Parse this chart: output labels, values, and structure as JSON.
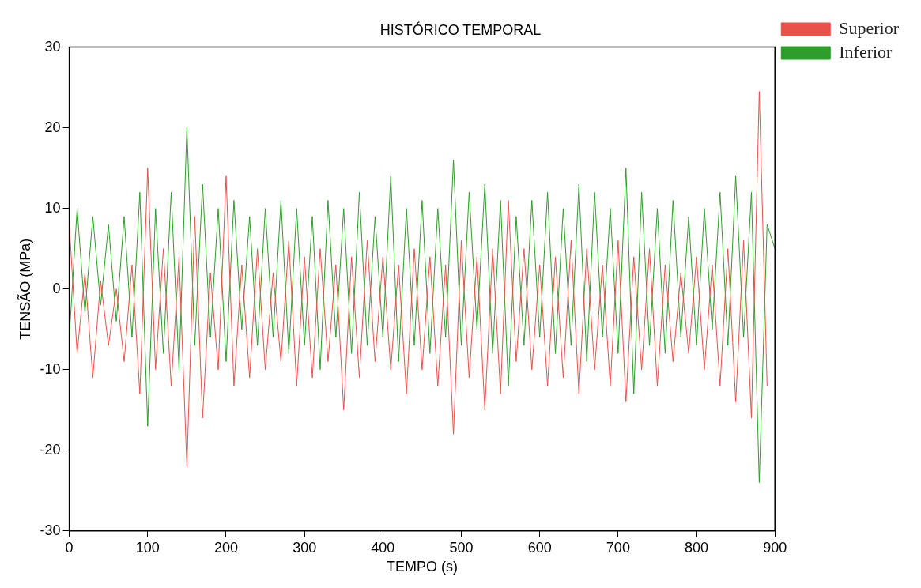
{
  "chart_data": {
    "type": "line",
    "title": "HISTÓRICO TEMPORAL",
    "xlabel": "TEMPO (s)",
    "ylabel": "TENSÃO (MPa)",
    "x": [
      0,
      10,
      20,
      30,
      40,
      50,
      60,
      70,
      80,
      90,
      100,
      110,
      120,
      130,
      140,
      150,
      160,
      170,
      180,
      190,
      200,
      210,
      220,
      230,
      240,
      250,
      260,
      270,
      280,
      290,
      300,
      310,
      320,
      330,
      340,
      350,
      360,
      370,
      380,
      390,
      400,
      410,
      420,
      430,
      440,
      450,
      460,
      470,
      480,
      490,
      500,
      510,
      520,
      530,
      540,
      550,
      560,
      570,
      580,
      590,
      600,
      610,
      620,
      630,
      640,
      650,
      660,
      670,
      680,
      690,
      700,
      710,
      720,
      730,
      740,
      750,
      760,
      770,
      780,
      790,
      800,
      810,
      820,
      830,
      840,
      850,
      860,
      870,
      880,
      890,
      900
    ],
    "series": [
      {
        "name": "Superior",
        "color": "#e8524a",
        "values": [
          8,
          -8,
          2,
          -11,
          1,
          -7,
          0,
          -9,
          3,
          -13,
          15,
          -10,
          5,
          -12,
          4,
          -22,
          9,
          -16,
          2,
          -10,
          14,
          -12,
          3,
          -11,
          5,
          -10,
          2,
          -9,
          6,
          -12,
          4,
          -11,
          5,
          -9,
          3,
          -15,
          4,
          -11,
          6,
          -9,
          4,
          -10,
          3,
          -13,
          5,
          -10,
          4,
          -12,
          3,
          -18,
          6,
          -11,
          4,
          -15,
          5,
          -13,
          11,
          -9,
          5,
          -10,
          3,
          -12,
          4,
          -11,
          6,
          -13,
          5,
          -10,
          3,
          -12,
          6,
          -14,
          4,
          -10,
          5,
          -12,
          3,
          -9,
          2,
          -8,
          4,
          -10,
          3,
          -12,
          5,
          -14,
          6,
          -16,
          24.5,
          -12,
          null
        ]
      },
      {
        "name": "Inferior",
        "color": "#2e9e2a",
        "values": [
          -6,
          10,
          -3,
          9,
          -2,
          8,
          -4,
          9,
          -6,
          12,
          -17,
          10,
          -8,
          12,
          -10,
          20,
          -7,
          13,
          -6,
          10,
          -9,
          11,
          -5,
          9,
          -7,
          10,
          -6,
          11,
          -8,
          10,
          -7,
          9,
          -10,
          11,
          -6,
          10,
          -8,
          12,
          -7,
          9,
          -6,
          14,
          -9,
          10,
          -7,
          11,
          -8,
          10,
          -6,
          16,
          -7,
          12,
          -5,
          13,
          -8,
          11,
          -12,
          9,
          -7,
          11,
          -6,
          12,
          -8,
          10,
          -7,
          13,
          -9,
          12,
          -6,
          10,
          -8,
          15,
          -13,
          12,
          -7,
          10,
          -8,
          11,
          -6,
          9,
          -7,
          10,
          -5,
          12,
          -7,
          14,
          -6,
          12,
          -24,
          8,
          5
        ]
      }
    ],
    "xlim": [
      0,
      900
    ],
    "xticks": [
      0,
      100,
      200,
      300,
      400,
      500,
      600,
      700,
      800,
      900
    ],
    "ylim": [
      -30,
      30
    ],
    "yticks": [
      -30,
      -20,
      -10,
      0,
      10,
      20,
      30
    ],
    "grid": false,
    "legend": "top right",
    "marker": "none"
  }
}
